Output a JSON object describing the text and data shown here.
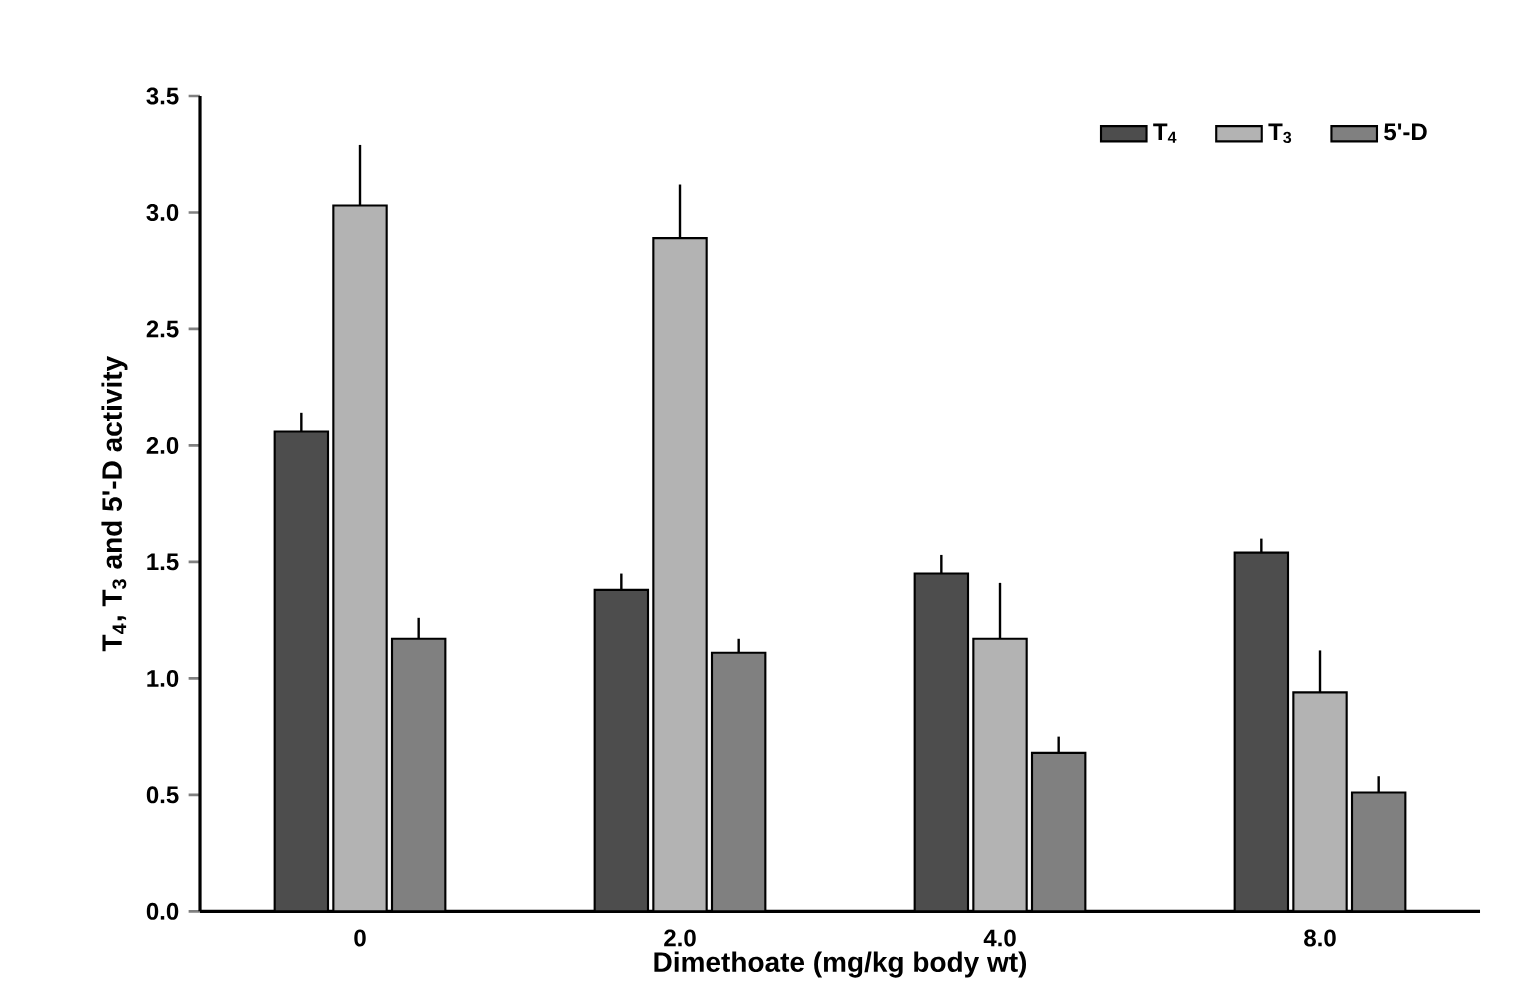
{
  "chart_data": {
    "type": "bar",
    "xlabel": "Dimethoate (mg/kg body wt)",
    "ylabel": "T$_{4}$, T$_{3}$ and 5'-D activity",
    "categories": [
      "0",
      "2.0",
      "4.0",
      "8.0"
    ],
    "series": [
      {
        "name": "T$_{4}$",
        "color": "#4d4d4d",
        "values": [
          2.06,
          1.38,
          1.45,
          1.54
        ],
        "errors": [
          [
            2.06,
            2.14
          ],
          [
            1.38,
            1.45
          ],
          [
            1.45,
            1.53
          ],
          [
            1.54,
            1.6
          ]
        ]
      },
      {
        "name": "T$_{3}$",
        "color": "#b3b3b3",
        "values": [
          3.03,
          2.89,
          1.17,
          0.94
        ],
        "errors": [
          [
            3.03,
            3.29
          ],
          [
            2.89,
            3.12
          ],
          [
            1.17,
            1.41
          ],
          [
            0.94,
            1.12
          ]
        ]
      },
      {
        "name": "5'-D",
        "color": "#808080",
        "values": [
          1.17,
          1.11,
          0.68,
          0.51
        ],
        "errors": [
          [
            1.17,
            1.26
          ],
          [
            1.11,
            1.17
          ],
          [
            0.68,
            0.75
          ],
          [
            0.51,
            0.58
          ]
        ]
      }
    ],
    "ylim": [
      0,
      3.5
    ],
    "yticks": [
      {
        "value": 0,
        "label": "0.0"
      },
      {
        "value": 0.5,
        "label": "0.5"
      },
      {
        "value": 1,
        "label": "1.0"
      },
      {
        "value": 1.5,
        "label": "1.5"
      },
      {
        "value": 2,
        "label": "2.0"
      },
      {
        "value": 2.5,
        "label": "2.5"
      },
      {
        "value": 3,
        "label": "3.0"
      },
      {
        "value": 3.5,
        "label": "3.5"
      }
    ],
    "legend": "top right",
    "grid": false
  }
}
